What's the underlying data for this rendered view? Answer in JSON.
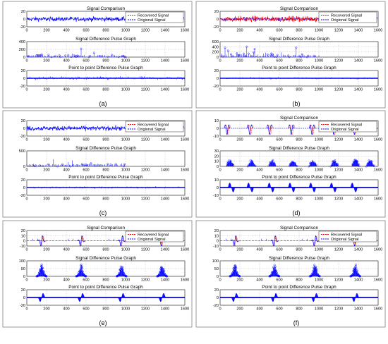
{
  "figure": {
    "panel_labels": [
      "(a)",
      "(b)",
      "(c)",
      "(d)",
      "(e)",
      "(f)"
    ],
    "subplot_titles": [
      "Signal Comparison",
      "Signal Difference Pulse Graph",
      "Point to point Difference Pulse Graph"
    ],
    "legend": [
      "Recovered Signal",
      "Origional Signal"
    ]
  },
  "colors": {
    "recovered": "#ff0000",
    "original": "#0000ff",
    "difference": "#0000ff",
    "frame": "#000000",
    "grid": "#999999",
    "panel_border": "#7f7f7f"
  },
  "chart_data": [
    {
      "panel": "(a)",
      "type": "line",
      "subplots": [
        {
          "title": "Signal Comparison",
          "xlim": [
            0,
            1600
          ],
          "ylim": [
            -20,
            20
          ],
          "xticks": [
            0,
            200,
            400,
            600,
            800,
            1000,
            1200,
            1400,
            1600
          ],
          "yticks": [
            -20,
            0,
            20
          ],
          "grid": true,
          "legend": [
            "Recovered Signal",
            "Origional Signal"
          ],
          "legend_position": "top-right",
          "series": [
            {
              "kind": "noise",
              "extent": [
                0,
                1000
              ],
              "amplitude": 10
            }
          ]
        },
        {
          "title": "Signal Difference Pulse Graph",
          "xlim": [
            0,
            1600
          ],
          "ylim": [
            0,
            400
          ],
          "xticks": [
            0,
            200,
            400,
            600,
            800,
            1000,
            1200,
            1400,
            1600
          ],
          "yticks": [
            0,
            200,
            400
          ],
          "grid": true,
          "series": [
            {
              "kind": "stem",
              "extent": [
                0,
                1000
              ],
              "peak": 200
            }
          ]
        },
        {
          "title": "Point to point Difference Pulse Graph",
          "xlim": [
            0,
            1600
          ],
          "ylim": [
            -20,
            20
          ],
          "xticks": [
            0,
            200,
            400,
            600,
            800,
            1000,
            1200,
            1400,
            1600
          ],
          "yticks": [
            -20,
            0,
            20
          ],
          "grid": true,
          "series": [
            {
              "kind": "stem-symmetric",
              "extent": [
                0,
                1600
              ],
              "peak": 15
            }
          ]
        }
      ]
    },
    {
      "panel": "(b)",
      "type": "line",
      "subplots": [
        {
          "title": "Signal Comparison",
          "xlim": [
            0,
            1600
          ],
          "ylim": [
            -20,
            20
          ],
          "xticks": [
            0,
            200,
            400,
            600,
            800,
            1000,
            1200,
            1400,
            1600
          ],
          "yticks": [
            -20,
            0,
            20
          ],
          "grid": true,
          "legend": [
            "Recovered Signal",
            "Origional Signal"
          ],
          "legend_position": "top-right",
          "series": [
            {
              "kind": "noise-red",
              "extent": [
                0,
                1000
              ],
              "amplitude": 12
            }
          ]
        },
        {
          "title": "Signal Difference Pulse Graph",
          "xlim": [
            0,
            1600
          ],
          "ylim": [
            0,
            600
          ],
          "xticks": [
            0,
            200,
            400,
            600,
            800,
            1000,
            1200,
            1400,
            1600
          ],
          "yticks": [
            0,
            200,
            400,
            600
          ],
          "grid": true,
          "series": [
            {
              "kind": "stem",
              "extent": [
                0,
                1000
              ],
              "peak": 400
            }
          ]
        },
        {
          "title": "Point to point Difference Pulse Graph",
          "xlim": [
            0,
            1600
          ],
          "ylim": [
            -20,
            20
          ],
          "xticks": [
            0,
            200,
            400,
            600,
            800,
            1000,
            1200,
            1400,
            1600
          ],
          "yticks": [
            -20,
            0,
            20
          ],
          "grid": true,
          "series": [
            {
              "kind": "stem-symmetric",
              "extent": [
                0,
                1600
              ],
              "peak": 8
            }
          ]
        }
      ]
    },
    {
      "panel": "(c)",
      "type": "line",
      "subplots": [
        {
          "title": "",
          "xlim": [
            0,
            1600
          ],
          "ylim": [
            -20,
            20
          ],
          "xticks": [
            0,
            200,
            400,
            600,
            800,
            1000,
            1200,
            1400,
            1600
          ],
          "yticks": [
            -20,
            0,
            20
          ],
          "grid": true,
          "legend": [
            "Recovered Signal",
            "Origional Signal"
          ],
          "legend_position": "top-right",
          "series": [
            {
              "kind": "noise",
              "extent": [
                0,
                1000
              ],
              "amplitude": 10
            }
          ]
        },
        {
          "title": "Signal Difference Pulse Graph",
          "xlim": [
            0,
            1600
          ],
          "ylim": [
            0,
            500
          ],
          "xticks": [
            0,
            200,
            400,
            600,
            800,
            1000,
            1200,
            1400,
            1600
          ],
          "yticks": [
            0,
            500
          ],
          "grid": true,
          "series": [
            {
              "kind": "stem",
              "extent": [
                0,
                1000
              ],
              "peak": 250
            }
          ]
        },
        {
          "title": "Point to point Difference Pulse Graph",
          "xlim": [
            0,
            1600
          ],
          "ylim": [
            -20,
            20
          ],
          "xticks": [
            0,
            200,
            400,
            600,
            800,
            1000,
            1200,
            1400,
            1600
          ],
          "yticks": [
            -20,
            0,
            20
          ],
          "grid": true,
          "series": [
            {
              "kind": "stem-symmetric",
              "extent": [
                0,
                1600
              ],
              "peak": 10
            }
          ]
        }
      ]
    },
    {
      "panel": "(d)",
      "type": "line",
      "subplots": [
        {
          "title": "Signal Comparison",
          "xlim": [
            0,
            1600
          ],
          "ylim": [
            -10,
            10
          ],
          "xticks": [
            0,
            200,
            400,
            600,
            800,
            1000,
            1200,
            1400,
            1600
          ],
          "yticks": [
            -10,
            0,
            10
          ],
          "grid": true,
          "legend": [
            "Recovered Signal",
            "Origional Signal"
          ],
          "legend_position": "top-right",
          "series": [
            {
              "kind": "periodic",
              "bursts": [
                40,
                270,
                470,
                690,
                900,
                1120,
                1330
              ],
              "peak": 8
            }
          ]
        },
        {
          "title": "Signal Difference Pulse Graph",
          "xlim": [
            0,
            1600
          ],
          "ylim": [
            0,
            30
          ],
          "xticks": [
            0,
            200,
            400,
            600,
            800,
            1000,
            1200,
            1400,
            1600
          ],
          "yticks": [
            0,
            10,
            20,
            30
          ],
          "grid": true,
          "series": [
            {
              "kind": "periodic-stem",
              "bursts": [
                60,
                280,
                490,
                700,
                900,
                1120,
                1330,
                1480
              ],
              "peak": 12
            }
          ]
        },
        {
          "title": "Point to point Difference Pulse Graph",
          "xlim": [
            0,
            1600
          ],
          "ylim": [
            -10,
            10
          ],
          "xticks": [
            0,
            200,
            400,
            600,
            800,
            1000,
            1200,
            1400,
            1600
          ],
          "yticks": [
            -10,
            0,
            10
          ],
          "grid": true,
          "series": [
            {
              "kind": "periodic-symmetric",
              "bursts": [
                80,
                270,
                480,
                690,
                900,
                1110,
                1320
              ],
              "peak": 6
            }
          ]
        }
      ]
    },
    {
      "panel": "(e)",
      "type": "line",
      "subplots": [
        {
          "title": "Signal Comparison",
          "xlim": [
            0,
            1600
          ],
          "ylim": [
            -10,
            20
          ],
          "xticks": [
            0,
            200,
            400,
            600,
            800,
            1000,
            1200,
            1400,
            1600
          ],
          "yticks": [
            -10,
            0,
            10,
            20
          ],
          "grid": true,
          "legend": [
            "Recovered Signal",
            "Origional Signal"
          ],
          "legend_position": "top-right",
          "series": [
            {
              "kind": "sparse",
              "bursts": [
                150,
                550,
                960,
                1370
              ],
              "peak": 12
            }
          ]
        },
        {
          "title": "Signal Difference Pulse Graph",
          "xlim": [
            0,
            1600
          ],
          "ylim": [
            0,
            100
          ],
          "xticks": [
            0,
            200,
            400,
            600,
            800,
            1000,
            1200,
            1400,
            1600
          ],
          "yticks": [
            0,
            50,
            100
          ],
          "grid": true,
          "series": [
            {
              "kind": "sparse-stem",
              "bursts": [
                150,
                550,
                960,
                1370
              ],
              "peak": 70
            }
          ]
        },
        {
          "title": "Point to point Difference Pulse Graph",
          "xlim": [
            0,
            1600
          ],
          "ylim": [
            -20,
            20
          ],
          "xticks": [
            0,
            200,
            400,
            600,
            800,
            1000,
            1200,
            1400,
            1600
          ],
          "yticks": [
            -20,
            0,
            20
          ],
          "grid": true,
          "series": [
            {
              "kind": "sparse-symmetric",
              "bursts": [
                150,
                550,
                960,
                1370
              ],
              "peak": 15
            }
          ]
        }
      ]
    },
    {
      "panel": "(f)",
      "type": "line",
      "subplots": [
        {
          "title": "Signal Comparison",
          "xlim": [
            0,
            1600
          ],
          "ylim": [
            -10,
            20
          ],
          "xticks": [
            0,
            200,
            400,
            600,
            800,
            1000,
            1200,
            1400,
            1600
          ],
          "yticks": [
            -10,
            0,
            10,
            20
          ],
          "grid": true,
          "legend": [
            "Recovered Signal",
            "Origional Signal"
          ],
          "legend_position": "top-right",
          "series": [
            {
              "kind": "sparse",
              "bursts": [
                150,
                550,
                960,
                1370
              ],
              "peak": 12
            }
          ]
        },
        {
          "title": "Signal Difference Pulse Graph",
          "xlim": [
            0,
            1600
          ],
          "ylim": [
            0,
            100
          ],
          "xticks": [
            0,
            200,
            400,
            600,
            800,
            1000,
            1200,
            1400,
            1600
          ],
          "yticks": [
            0,
            50,
            100
          ],
          "grid": true,
          "series": [
            {
              "kind": "sparse-stem",
              "bursts": [
                150,
                550,
                960,
                1370
              ],
              "peak": 70
            }
          ]
        },
        {
          "title": "Point to point Difference Pulse Graph",
          "xlim": [
            0,
            1600
          ],
          "ylim": [
            -20,
            20
          ],
          "xticks": [
            0,
            200,
            400,
            600,
            800,
            1000,
            1200,
            1400,
            1600
          ],
          "yticks": [
            -20,
            0,
            20
          ],
          "grid": true,
          "series": [
            {
              "kind": "sparse-symmetric",
              "bursts": [
                150,
                550,
                960,
                1370
              ],
              "peak": 15
            }
          ]
        }
      ]
    }
  ]
}
